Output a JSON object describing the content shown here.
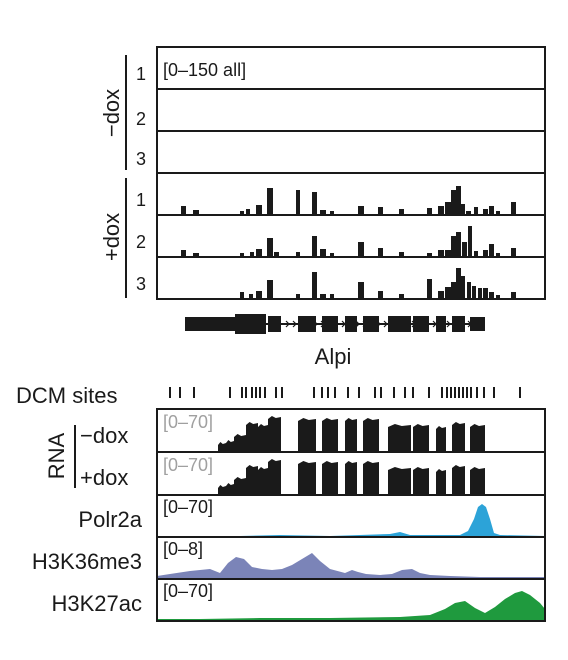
{
  "colors": {
    "black": "#1a1a1a",
    "range_gray": "#a0a0a0",
    "polr2a": "#2ca3d8",
    "h3k36me3": "#7b84b8",
    "h3k27ac": "#1f9a3e"
  },
  "top": {
    "range_label": "[0–150 all]",
    "groups": [
      {
        "label": "−dox",
        "replicates": [
          "1",
          "2",
          "3"
        ]
      },
      {
        "label": "+dox",
        "replicates": [
          "1",
          "2",
          "3"
        ]
      }
    ]
  },
  "gene": {
    "name": "Alpi"
  },
  "dcm": {
    "label": "DCM sites"
  },
  "rna": {
    "label": "RNA",
    "tracks": [
      {
        "condition": "−dox",
        "range": "[0–70]"
      },
      {
        "condition": "+dox",
        "range": "[0–70]"
      }
    ]
  },
  "chip": [
    {
      "name": "Polr2a",
      "range": "[0–70]",
      "color": "polr2a"
    },
    {
      "name": "H3K36me3",
      "range": "[0–8]",
      "color": "h3k36me3"
    },
    {
      "name": "H3K27ac",
      "range": "[0–70]",
      "color": "h3k27ac"
    }
  ]
}
